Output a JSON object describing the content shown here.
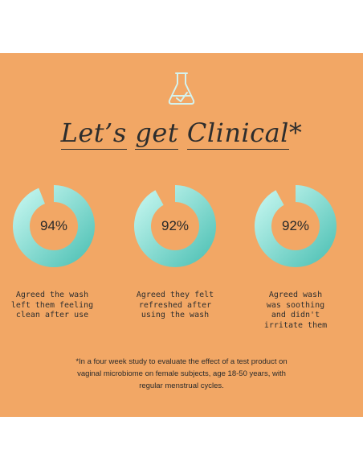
{
  "heading": {
    "words": [
      "Let’s",
      "get",
      "Clinical"
    ],
    "asterisk": "*"
  },
  "icon": "flask-check-icon",
  "colors": {
    "background": "#f2a765",
    "ring_light": "#b7f2ea",
    "ring_dark": "#5cc7bb",
    "icon_stroke": "#d4f2ee",
    "text": "#2d2d2d"
  },
  "stats": [
    {
      "percent": "94%",
      "fraction": 0.94,
      "caption": "Agreed the wash\nleft them feeling\nclean after use"
    },
    {
      "percent": "92%",
      "fraction": 0.92,
      "caption": "Agreed they felt\nrefreshed after\nusing the wash"
    },
    {
      "percent": "92%",
      "fraction": 0.92,
      "caption": "Agreed wash\nwas soothing\nand didn't\nirritate them"
    }
  ],
  "footnote": "*In a four week study to evaluate the effect of a test product on\nvaginal microbiome on female subjects, age 18-50 years, with\nregular menstrual cycles."
}
